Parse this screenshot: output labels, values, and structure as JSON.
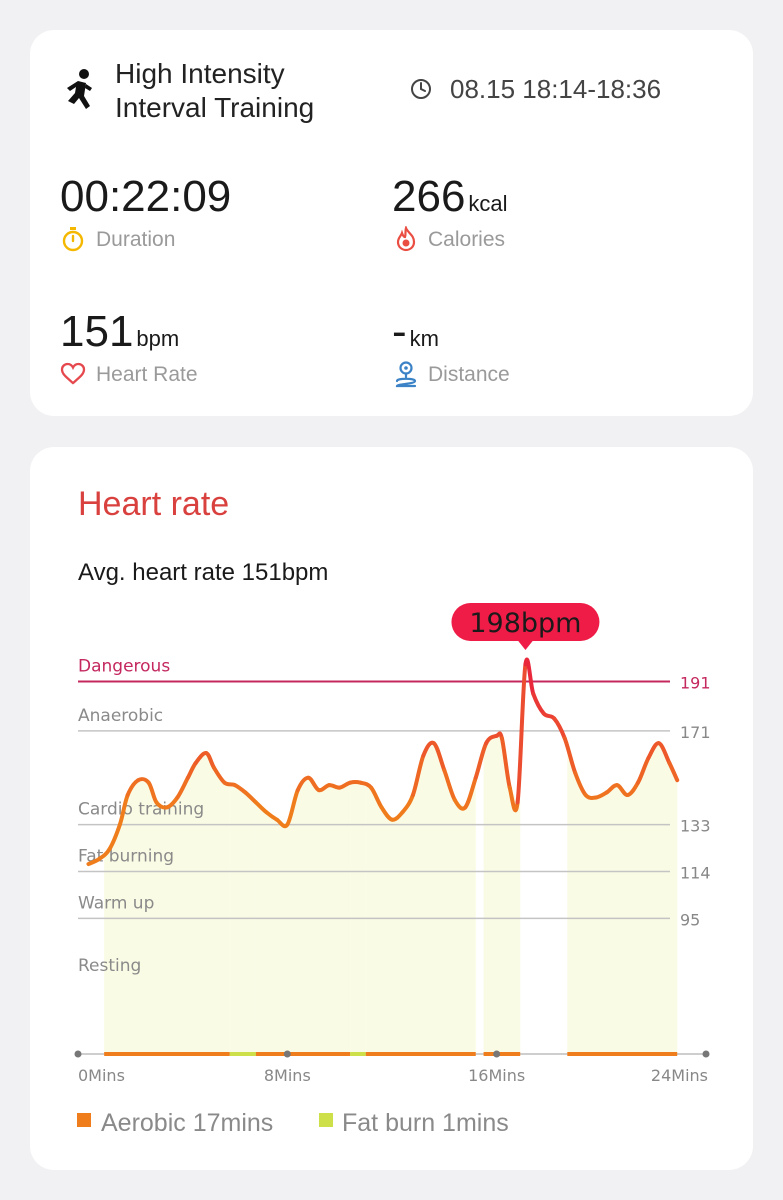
{
  "summary": {
    "title_line1": "High Intensity",
    "title_line2": "Interval Training",
    "datetime": "08.15 18:14-18:36",
    "duration": {
      "value": "00:22:09",
      "label": "Duration"
    },
    "calories": {
      "value": "266",
      "unit": "kcal",
      "label": "Calories"
    },
    "heart_rate": {
      "value": "151",
      "unit": "bpm",
      "label": "Heart Rate"
    },
    "distance": {
      "value": "-",
      "unit": "km",
      "label": "Distance"
    }
  },
  "icons": {
    "workout": "running-figure-icon",
    "clock": "clock-icon",
    "duration": "stopwatch-icon",
    "calories": "flame-icon",
    "heart_rate": "heart-icon",
    "distance": "location-route-icon"
  },
  "heart_rate_card": {
    "title": "Heart rate",
    "avg_text": "Avg. heart rate 151bpm",
    "peak_label": "198bpm",
    "legend": [
      {
        "label": "Aerobic 17mins",
        "color": "#f07d1c"
      },
      {
        "label": "Fat burn 1mins",
        "color": "#cde04a"
      }
    ]
  },
  "colors": {
    "title_red": "#d9413f",
    "dangerous": "#c4285f",
    "peak_badge": "#ee1c47",
    "line_orange": "#f07d1c",
    "fill_yellow": "#fafbe4"
  },
  "chart_data": {
    "type": "line",
    "xlabel": "",
    "ylabel": "",
    "x_unit": "Mins",
    "xlim": [
      0,
      24
    ],
    "x_ticks": [
      {
        "value": 0,
        "label": "0Mins"
      },
      {
        "value": 8,
        "label": "8Mins"
      },
      {
        "value": 16,
        "label": "16Mins"
      },
      {
        "value": 24,
        "label": "24Mins"
      }
    ],
    "ylim": [
      40,
      205
    ],
    "zones": [
      {
        "name": "Dangerous",
        "threshold": 191
      },
      {
        "name": "Anaerobic",
        "threshold": 171
      },
      {
        "name": "Cardio training",
        "threshold": 133
      },
      {
        "name": "Fat burning",
        "threshold": 114
      },
      {
        "name": "Warm up",
        "threshold": 95
      },
      {
        "name": "Resting",
        "threshold": null
      }
    ],
    "peak": {
      "x": 17.1,
      "y": 198
    },
    "series": [
      {
        "x": [
          0.4,
          0.8,
          1.2,
          1.6,
          1.9,
          2.3,
          2.7,
          3.0,
          3.4,
          3.8,
          4.2,
          4.5,
          4.9,
          5.2,
          5.6,
          6.0,
          6.4,
          6.8,
          7.2,
          7.6,
          8.0,
          8.4,
          8.8,
          9.2,
          9.6,
          10.0,
          10.4,
          10.8,
          11.2,
          11.6,
          12.0,
          12.4,
          12.8,
          13.2,
          13.6,
          14.0,
          14.4,
          14.8,
          15.2,
          15.6,
          16.0,
          16.2,
          16.5,
          16.8,
          17.1,
          17.4,
          17.8,
          18.2,
          18.6,
          19.0,
          19.4,
          19.8,
          20.2,
          20.6,
          21.0,
          21.4,
          21.8,
          22.2,
          22.6,
          22.9
        ],
        "y": [
          117,
          119,
          123,
          133,
          145,
          151,
          150,
          142,
          140,
          144,
          152,
          158,
          162,
          156,
          150,
          149,
          146,
          142,
          138,
          135,
          133,
          147,
          152,
          147,
          149,
          148,
          150,
          150,
          148,
          140,
          135,
          138,
          145,
          161,
          166,
          155,
          143,
          140,
          152,
          166,
          169,
          168,
          148,
          142,
          198,
          186,
          178,
          176,
          168,
          154,
          145,
          144,
          146,
          149,
          145,
          150,
          160,
          166,
          158,
          151
        ]
      }
    ],
    "zone_bars": [
      {
        "start": 1.0,
        "end": 5.8,
        "zone": "Aerobic"
      },
      {
        "start": 5.8,
        "end": 6.8,
        "zone": "Fat burn"
      },
      {
        "start": 6.8,
        "end": 10.4,
        "zone": "Aerobic"
      },
      {
        "start": 10.4,
        "end": 11.0,
        "zone": "Fat burn"
      },
      {
        "start": 11.0,
        "end": 15.2,
        "zone": "Aerobic"
      },
      {
        "start": 15.5,
        "end": 16.9,
        "zone": "Aerobic"
      },
      {
        "start": 18.7,
        "end": 22.9,
        "zone": "Aerobic"
      }
    ]
  }
}
